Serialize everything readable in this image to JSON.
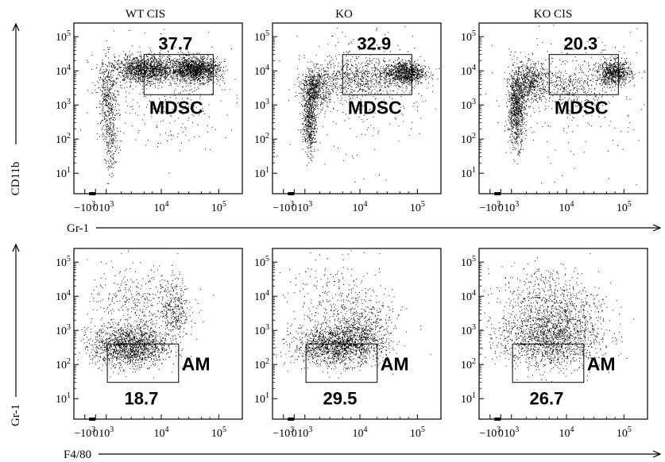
{
  "figure": {
    "rows": [
      {
        "x_axis_label": "Gr-1",
        "y_axis_label": "CD11b",
        "gate_label": "MDSC",
        "gate_label_side": "below-gate"
      },
      {
        "x_axis_label": "F4/80",
        "y_axis_label": "Gr-1",
        "gate_label": "AM",
        "gate_label_side": "right-of-gate"
      }
    ],
    "columns": [
      "WT CIS",
      "KO",
      "KO CIS"
    ],
    "tick_labels": {
      "x": [
        {
          "base": "−10",
          "exp": "3"
        },
        {
          "base": "0",
          "exp": ""
        },
        {
          "base": "10",
          "exp": "3"
        },
        {
          "base": "10",
          "exp": "4"
        },
        {
          "base": "10",
          "exp": "5"
        }
      ],
      "y": [
        {
          "base": "10",
          "exp": "1"
        },
        {
          "base": "10",
          "exp": "2"
        },
        {
          "base": "10",
          "exp": "3"
        },
        {
          "base": "10",
          "exp": "4"
        },
        {
          "base": "10",
          "exp": "5"
        }
      ]
    }
  },
  "chart_data": [
    {
      "type": "scatter",
      "column_title": "WT CIS",
      "xlabel": "Gr-1",
      "ylabel": "CD11b",
      "x_scale": "biexponential",
      "y_scale": "log",
      "xlim": [
        -1500,
        100000
      ],
      "ylim": [
        5,
        200000
      ],
      "gate": {
        "label": "MDSC",
        "percent": "37.7",
        "x_range": [
          5000,
          80000
        ],
        "y_range": [
          2000,
          30000
        ]
      }
    },
    {
      "type": "scatter",
      "column_title": "KO",
      "xlabel": "Gr-1",
      "ylabel": "CD11b",
      "x_scale": "biexponential",
      "y_scale": "log",
      "xlim": [
        -1500,
        100000
      ],
      "ylim": [
        5,
        200000
      ],
      "gate": {
        "label": "MDSC",
        "percent": "32.9",
        "x_range": [
          5000,
          80000
        ],
        "y_range": [
          2000,
          30000
        ]
      }
    },
    {
      "type": "scatter",
      "column_title": "KO CIS",
      "xlabel": "Gr-1",
      "ylabel": "CD11b",
      "x_scale": "biexponential",
      "y_scale": "log",
      "xlim": [
        -1500,
        100000
      ],
      "ylim": [
        5,
        200000
      ],
      "gate": {
        "label": "MDSC",
        "percent": "20.3",
        "x_range": [
          5000,
          80000
        ],
        "y_range": [
          2000,
          30000
        ]
      }
    },
    {
      "type": "scatter",
      "column_title": "WT CIS",
      "xlabel": "F4/80",
      "ylabel": "Gr-1",
      "x_scale": "biexponential",
      "y_scale": "log",
      "xlim": [
        -1500,
        100000
      ],
      "ylim": [
        5,
        200000
      ],
      "gate": {
        "label": "AM",
        "percent": "18.7",
        "x_range": [
          1100,
          20000
        ],
        "y_range": [
          30,
          400
        ]
      }
    },
    {
      "type": "scatter",
      "column_title": "KO",
      "xlabel": "F4/80",
      "ylabel": "Gr-1",
      "x_scale": "biexponential",
      "y_scale": "log",
      "xlim": [
        -1500,
        100000
      ],
      "ylim": [
        5,
        200000
      ],
      "gate": {
        "label": "AM",
        "percent": "29.5",
        "x_range": [
          1100,
          20000
        ],
        "y_range": [
          30,
          400
        ]
      }
    },
    {
      "type": "scatter",
      "column_title": "KO CIS",
      "xlabel": "F4/80",
      "ylabel": "Gr-1",
      "x_scale": "biexponential",
      "y_scale": "log",
      "xlim": [
        -1500,
        100000
      ],
      "ylim": [
        5,
        200000
      ],
      "gate": {
        "label": "AM",
        "percent": "26.7",
        "x_range": [
          1100,
          20000
        ],
        "y_range": [
          30,
          400
        ]
      }
    }
  ]
}
